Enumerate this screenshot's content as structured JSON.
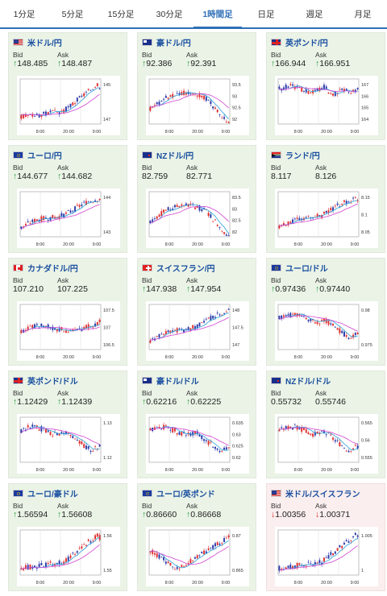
{
  "tabs": [
    "1分足",
    "5分足",
    "15分足",
    "30分足",
    "1時間足",
    "日足",
    "週足",
    "月足"
  ],
  "active_tab": 4,
  "labels": {
    "bid": "Bid",
    "ask": "Ask"
  },
  "colors": {
    "up": "#1e9b3a",
    "down": "#d12a2a",
    "candle_up": "#e03030",
    "candle_down": "#2a3aa8",
    "ma_short": "#2aa0d8",
    "ma_long": "#d040d0"
  },
  "x_ticks": [
    "8:00",
    "20:00",
    "9:00"
  ],
  "cards": [
    {
      "pair": "米ドル/円",
      "flag": "us",
      "trend": "up",
      "bid": "148.485",
      "ask": "148.487",
      "y_ticks": [
        "145",
        "147"
      ],
      "y_range": [
        144,
        148.6
      ],
      "shape": "rise_late"
    },
    {
      "pair": "豪ドル/円",
      "flag": "au",
      "trend": "up",
      "bid": "92.386",
      "ask": "92.391",
      "y_ticks": [
        "93.5",
        "93",
        "92.5",
        "92"
      ],
      "y_range": [
        91.8,
        93.6
      ],
      "shape": "hump"
    },
    {
      "pair": "英ポンド/円",
      "flag": "uk",
      "trend": "up",
      "bid": "166.944",
      "ask": "166.951",
      "y_ticks": [
        "167",
        "166",
        "165",
        "164"
      ],
      "y_range": [
        163.5,
        167.3
      ],
      "shape": "high_flat"
    },
    {
      "pair": "ユーロ/円",
      "flag": "eu",
      "trend": "up",
      "bid": "144.677",
      "ask": "144.682",
      "y_ticks": [
        "144",
        "143"
      ],
      "y_range": [
        142.6,
        144.9
      ],
      "shape": "rise_steady"
    },
    {
      "pair": "NZドル/円",
      "flag": "nz",
      "trend": "none",
      "bid": "82.759",
      "ask": "82.771",
      "y_ticks": [
        "83.5",
        "83",
        "82.5",
        "82"
      ],
      "y_range": [
        81.8,
        83.6
      ],
      "shape": "hump"
    },
    {
      "pair": "ランド/円",
      "flag": "za",
      "trend": "none",
      "bid": "8.117",
      "ask": "8.126",
      "y_ticks": [
        "8.15",
        "8.1",
        "8.05"
      ],
      "y_range": [
        8.02,
        8.16
      ],
      "shape": "rise_steady"
    },
    {
      "pair": "カナダドル/円",
      "flag": "ca",
      "trend": "none",
      "bid": "107.210",
      "ask": "107.225",
      "y_ticks": [
        "107.5",
        "107",
        "106.5"
      ],
      "y_range": [
        106.3,
        107.6
      ],
      "shape": "mid_flat"
    },
    {
      "pair": "スイスフラン/円",
      "flag": "ch",
      "trend": "up",
      "bid": "147.938",
      "ask": "147.954",
      "y_ticks": [
        "148",
        "147.5",
        "147"
      ],
      "y_range": [
        146.8,
        148.2
      ],
      "shape": "rise_steady"
    },
    {
      "pair": "ユーロ/ドル",
      "flag": "eu",
      "trend": "up",
      "bid": "0.97436",
      "ask": "0.97440",
      "y_ticks": [
        "0.98",
        "0.975"
      ],
      "y_range": [
        0.968,
        0.982
      ],
      "shape": "fall_late"
    },
    {
      "pair": "英ポンド/ドル",
      "flag": "uk",
      "trend": "up",
      "bid": "1.12429",
      "ask": "1.12439",
      "y_ticks": [
        "1.13",
        "1.12"
      ],
      "y_range": [
        1.112,
        1.136
      ],
      "shape": "fall_late"
    },
    {
      "pair": "豪ドル/ドル",
      "flag": "au",
      "trend": "up",
      "bid": "0.62216",
      "ask": "0.62225",
      "y_ticks": [
        "0.635",
        "0.63",
        "0.625",
        "0.62"
      ],
      "y_range": [
        0.617,
        0.637
      ],
      "shape": "fall_late"
    },
    {
      "pair": "NZドル/ドル",
      "flag": "nz",
      "trend": "none",
      "bid": "0.55732",
      "ask": "0.55746",
      "y_ticks": [
        "0.565",
        "0.56",
        "0.555"
      ],
      "y_range": [
        0.553,
        0.568
      ],
      "shape": "fall_late"
    },
    {
      "pair": "ユーロ/豪ドル",
      "flag": "eu",
      "trend": "up",
      "bid": "1.56594",
      "ask": "1.56608",
      "y_ticks": [
        "1.56",
        "1.55"
      ],
      "y_range": [
        1.543,
        1.565
      ],
      "shape": "rise_late"
    },
    {
      "pair": "ユーロ/英ポンド",
      "flag": "eu",
      "trend": "up",
      "bid": "0.86660",
      "ask": "0.86668",
      "y_ticks": [
        "0.87",
        "0.865"
      ],
      "y_range": [
        0.861,
        0.872
      ],
      "shape": "dip_rise"
    },
    {
      "pair": "米ドル/スイスフラン",
      "flag": "us",
      "trend": "down",
      "bid": "1.00356",
      "ask": "1.00371",
      "y_ticks": [
        "1.005",
        "1"
      ],
      "y_range": [
        0.996,
        1.007
      ],
      "shape": "rise_late"
    }
  ]
}
